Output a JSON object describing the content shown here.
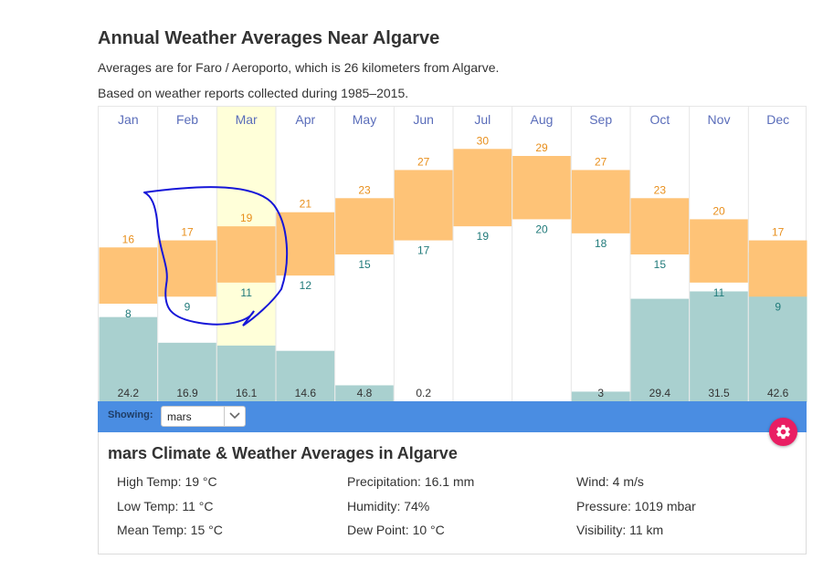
{
  "page": {
    "title": "Annual Weather Averages Near Algarve",
    "subtitle1": "Averages are for Faro / Aeroporto, which is 26 kilometers from Algarve.",
    "subtitle2": "Based on weather reports collected during 1985–2015."
  },
  "colors": {
    "temp_band": "#fec377",
    "high_label": "#e88f1c",
    "low_label": "#207a7a",
    "precip_bar": "#a9d0cf",
    "month_label": "#5a6dba",
    "selected_column": "#ffffd9",
    "showing_bar": "#4a8de2",
    "gear_button": "#e91e63",
    "annotation_stroke": "#1616d8"
  },
  "chart_data": {
    "type": "bar",
    "categories": [
      "Jan",
      "Feb",
      "Mar",
      "Apr",
      "May",
      "Jun",
      "Jul",
      "Aug",
      "Sep",
      "Oct",
      "Nov",
      "Dec"
    ],
    "selected_category": "Mar",
    "series": [
      {
        "values": [
          16,
          17,
          19,
          21,
          23,
          27,
          30,
          29,
          27,
          23,
          20,
          17
        ]
      },
      {
        "values": [
          8,
          9,
          11,
          12,
          15,
          17,
          19,
          20,
          18,
          15,
          11,
          9
        ]
      },
      {
        "values": [
          "24.2",
          "16.9",
          "16.1",
          "14.6",
          "4.8",
          "0.2",
          "",
          "",
          "3",
          "29.4",
          "31.5",
          "42.6"
        ]
      }
    ],
    "temp_axis_range": [
      -6,
      36
    ],
    "precip_axis_range": [
      0,
      84
    ],
    "grid": false,
    "annotation": "hand-drawn blue loop around Feb–Mar temperature bars"
  },
  "showing": {
    "label": "Showing:",
    "selected": "mars"
  },
  "icons": {
    "select_arrow": "chevron-down-icon",
    "gear": "gear-icon"
  },
  "detail": {
    "title": "mars Climate & Weather Averages in Algarve",
    "high_temp": "High Temp: 19 °C",
    "low_temp": "Low Temp: 11 °C",
    "mean_temp": "Mean Temp: 15 °C",
    "precipitation": "Precipitation: 16.1 mm",
    "humidity": "Humidity: 74%",
    "dew_point": "Dew Point: 10 °C",
    "wind": "Wind: 4 m/s",
    "pressure": "Pressure: 1019 mbar",
    "visibility": "Visibility: 11 km"
  }
}
